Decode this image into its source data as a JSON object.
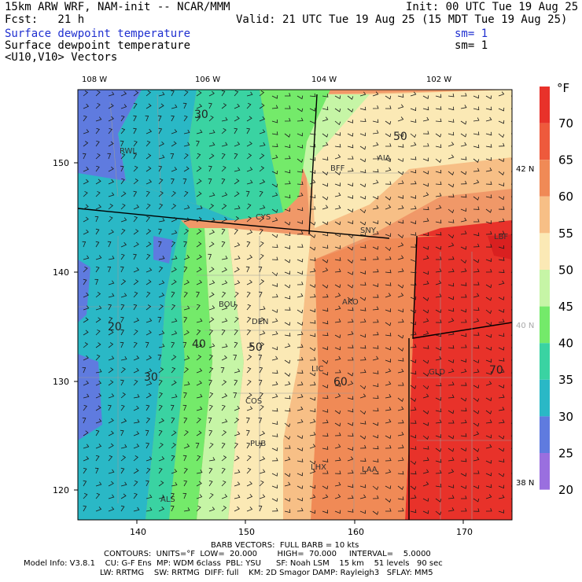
{
  "header": {
    "model_title": "15km ARW WRF, NAM-init -- NCAR/MMM",
    "init": "Init: 00 UTC Tue 19 Aug 25",
    "fcst": "Fcst:   21 h",
    "valid": "Valid: 21 UTC Tue 19 Aug 25 (15 MDT Tue 19 Aug 25)",
    "field1": "Surface dewpoint temperature",
    "field1_sm": "sm= 1",
    "field2": "Surface dewpoint temperature",
    "field2_sm": "sm= 1",
    "field3": "<U10,V10> Vectors"
  },
  "map": {
    "top_lon_labels": [
      "108 W",
      "106 W",
      "104 W",
      "102 W"
    ],
    "bottom_grid_labels": [
      "140",
      "150",
      "160",
      "170"
    ],
    "left_grid_labels": [
      "150",
      "140",
      "130",
      "120"
    ],
    "right_lat_labels": [
      "42 N",
      "40 N",
      "38 N"
    ],
    "stations": [
      "RWL",
      "BFF",
      "AIA",
      "CYS",
      "SNY",
      "BOU",
      "DEN",
      "AKO",
      "LIC",
      "GLD",
      "COS",
      "PUB",
      "LHX",
      "LAA",
      "ALS",
      "LBF"
    ],
    "contour_labels": [
      "30",
      "50",
      "40",
      "50",
      "60",
      "70",
      "20",
      "30"
    ]
  },
  "colorbar": {
    "unit": "°F",
    "ticks": [
      "70",
      "65",
      "60",
      "55",
      "50",
      "45",
      "40",
      "35",
      "30",
      "25",
      "20"
    ],
    "colors": [
      "#e8322a",
      "#ee5a3c",
      "#f08a56",
      "#f7bf86",
      "#fbe9b5",
      "#c6f5a6",
      "#74ea6a",
      "#3ad3a2",
      "#2ab8c6",
      "#5f7bdf",
      "#9a6fdf"
    ]
  },
  "footer": {
    "line1": "BARB VECTORS:  FULL BARB = 10 kts",
    "line2": "CONTOURS:  UNITS=°F  LOW=  20.000        HIGH=  70.000     INTERVAL=    5.0000",
    "line3": "Model Info: V3.8.1    CU: G-F Ens  MP: WDM 6class  PBL: YSU      SF: Noah LSM    15 km    51 levels   90 sec",
    "line4": "LW: RRTMG    SW: RRTMG  DIFF: full    KM: 2D Smagor DAMP: Rayleigh3   SFLAY: MM5"
  }
}
